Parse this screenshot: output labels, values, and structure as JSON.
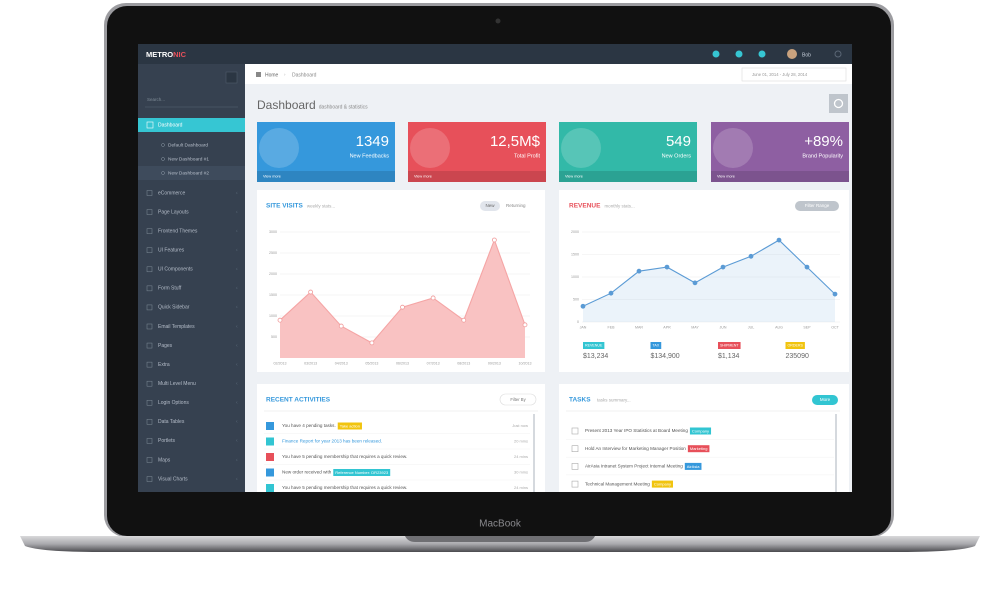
{
  "brand": {
    "logo_main": "METRO",
    "logo_accent": "NIC"
  },
  "topbar": {
    "user": "Bob"
  },
  "sidebar": {
    "search": "Search...",
    "active": "Dashboard",
    "subitems": [
      "Default Dashboard",
      "New Dashboard #1",
      "New Dashboard #2"
    ],
    "items": [
      "eCommerce",
      "Page Layouts",
      "Frontend Themes",
      "UI Features",
      "UI Components",
      "Form Stuff",
      "Quick Sidebar",
      "Email Templates",
      "Pages",
      "Extra",
      "Multi Level Menu",
      "Login Options",
      "Data Tables",
      "Portlets",
      "Maps",
      "Visual Charts"
    ]
  },
  "breadcrumb": [
    "Home",
    "Dashboard"
  ],
  "date_range": "June 01, 2014 - July 28, 2014",
  "page_title": "Dashboard",
  "page_subtitle": "dashboard & statistics",
  "stats": [
    {
      "value": "1349",
      "label": "New Feedbacks",
      "link": "View more"
    },
    {
      "value": "12,5M$",
      "label": "Total Profit",
      "link": "View more"
    },
    {
      "value": "549",
      "label": "New Orders",
      "link": "View more"
    },
    {
      "value": "+89%",
      "label": "Brand Popularity",
      "link": "View more"
    }
  ],
  "site_visits": {
    "title": "SITE VISITS",
    "subtitle": "weekly stats...",
    "tabs": [
      "New",
      "Returning"
    ],
    "x": [
      "02/2013",
      "03/2013",
      "04/2013",
      "05/2013",
      "06/2013",
      "07/2013",
      "08/2013",
      "09/2013",
      "10/2013"
    ],
    "values": [
      900,
      1570,
      760,
      360,
      1210,
      1430,
      900,
      2810,
      790
    ],
    "ylim": [
      0,
      3000
    ],
    "yticks": [
      500,
      1000,
      1500,
      2000,
      2500,
      3000
    ]
  },
  "revenue": {
    "title": "REVENUE",
    "subtitle": "monthly stats...",
    "button": "Filter Range",
    "x": [
      "JAN",
      "FEB",
      "MAR",
      "APR",
      "MAY",
      "JUN",
      "JUL",
      "AUG",
      "SEP",
      "OCT"
    ],
    "values": [
      350,
      640,
      1130,
      1220,
      870,
      1220,
      1460,
      1820,
      1220,
      620
    ],
    "ylim": [
      0,
      2000
    ],
    "yticks": [
      0,
      500,
      1000,
      1500,
      2000
    ],
    "summary": [
      {
        "label": "REVENUE",
        "value": "$13,234"
      },
      {
        "label": "TAX",
        "value": "$134,900"
      },
      {
        "label": "SHIPMENT",
        "value": "$1,134"
      },
      {
        "label": "ORDERS",
        "value": "235090"
      }
    ]
  },
  "activities": {
    "title": "RECENT ACTIVITIES",
    "filter": "Filter By",
    "items": [
      {
        "text": "You have 4 pending tasks.",
        "badge": "Take action",
        "time": "Just now"
      },
      {
        "text": "Finance Report for year 2013 has been released.",
        "time": "20 mins"
      },
      {
        "text": "You have 5 pending membership that requires a quick review.",
        "time": "24 mins"
      },
      {
        "text": "New order received with",
        "badge": "Reference Number: DR23923",
        "time": "30 mins"
      },
      {
        "text": "You have 5 pending membership that requires a quick review.",
        "time": "24 mins"
      }
    ]
  },
  "tasks": {
    "title": "TASKS",
    "subtitle": "tasks summary...",
    "button": "More",
    "items": [
      {
        "text": "Present 2013 Year IPO Statistics at Board Meeting",
        "badge": "Company"
      },
      {
        "text": "Hold An Interview for Marketing Manager Position",
        "badge": "Marketing"
      },
      {
        "text": "AirAsia Intranet System Project Internal Meeting",
        "badge": "AirAsia"
      },
      {
        "text": "Technical Management Meeting",
        "badge": "Company"
      }
    ]
  },
  "laptop_label": "MacBook"
}
